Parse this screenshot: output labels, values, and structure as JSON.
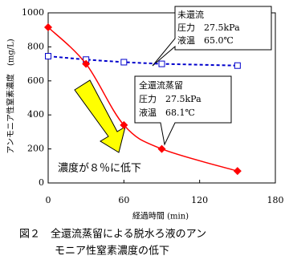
{
  "chart_data": {
    "type": "line",
    "x": [
      0,
      30,
      60,
      90,
      150
    ],
    "series": [
      {
        "name": "未還流",
        "color": "#0000cc",
        "marker": "square",
        "dashed": true,
        "values": [
          745,
          725,
          710,
          700,
          690
        ]
      },
      {
        "name": "全還流蒸留",
        "color": "#ff0000",
        "marker": "diamond",
        "dashed": false,
        "values": [
          915,
          700,
          340,
          200,
          70
        ]
      }
    ],
    "xlim": [
      0,
      180
    ],
    "xticks": [
      0,
      60,
      120,
      180
    ],
    "ylim": [
      0,
      1000
    ],
    "yticks": [
      0,
      200,
      400,
      600,
      800,
      1000
    ],
    "xlabel": "経過時間 (min)",
    "ylabel": "アンモニア性窒素濃度　(mg/L)",
    "callouts": [
      [
        "圧力　27.5kPa",
        "液温　65.0℃"
      ],
      [
        "圧力　27.5kPa",
        "液温　68.1℃"
      ]
    ],
    "annotation": "濃度が８％に低下",
    "caption": [
      "図２　全還流蒸留による脱水ろ液のアン",
      "モニア性窒素濃度の低下"
    ],
    "grid": false
  }
}
